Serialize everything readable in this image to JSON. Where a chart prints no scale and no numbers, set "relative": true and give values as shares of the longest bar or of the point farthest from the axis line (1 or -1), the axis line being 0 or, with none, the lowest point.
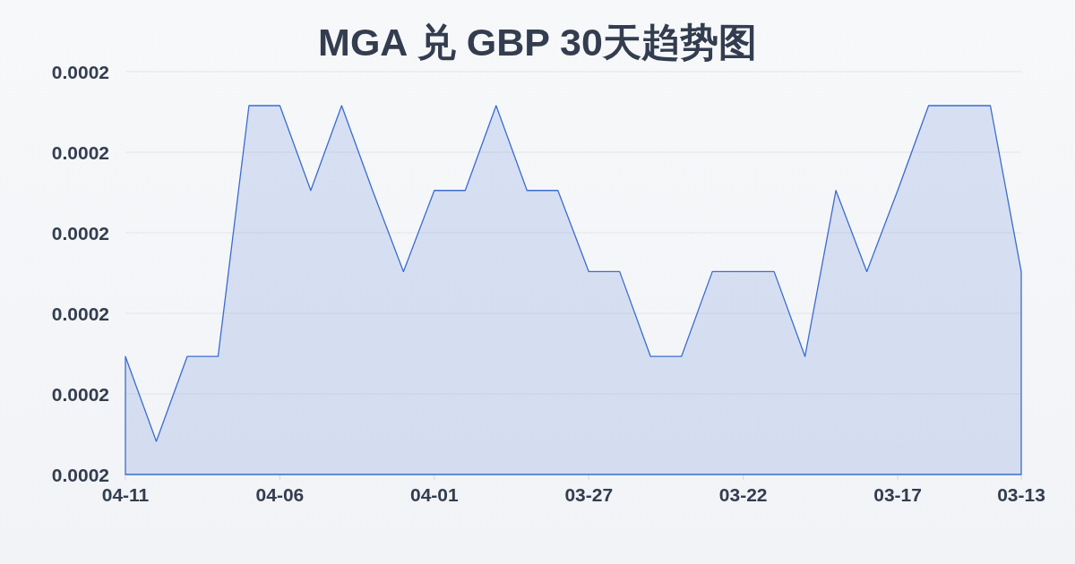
{
  "chart_data": {
    "type": "area",
    "title": "MGA 兑 GBP 30天趋势图",
    "categories": [
      "04-11",
      null,
      null,
      null,
      null,
      "04-06",
      null,
      null,
      null,
      null,
      "04-01",
      null,
      null,
      null,
      null,
      "03-27",
      null,
      null,
      null,
      null,
      "03-22",
      null,
      null,
      null,
      null,
      "03-17",
      null,
      null,
      null,
      "03-13"
    ],
    "series": [
      {
        "color": "#3b6cd0",
        "values": [
          0.32,
          0.09,
          0.32,
          0.32,
          1,
          1,
          0.77,
          1,
          0.77,
          0.55,
          0.77,
          0.77,
          1,
          0.77,
          0.77,
          0.55,
          0.55,
          0.32,
          0.32,
          0.55,
          0.55,
          0.55,
          0.32,
          0.77,
          0.55,
          0.77,
          1,
          1,
          1,
          0.55
        ]
      }
    ],
    "relative": true,
    "annotations": [
      "0.0002",
      "0.0002",
      "0.0002",
      "0.0002",
      "0.0002",
      "0.0002"
    ],
    "grid": "y"
  }
}
